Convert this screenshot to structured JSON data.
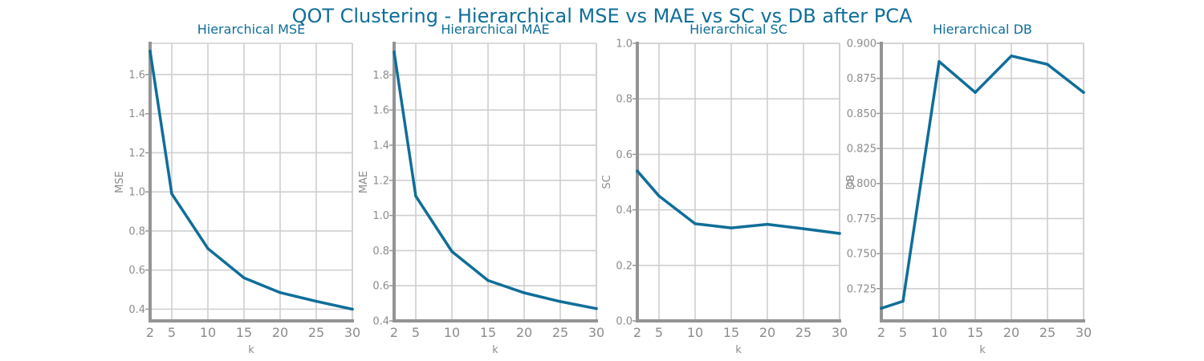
{
  "suptitle": "QOT Clustering - Hierarchical MSE vs MAE vs SC vs DB after PCA",
  "colors": {
    "line": "#0f6e99",
    "title": "#0f6e99",
    "axis": "#949494",
    "grid": "#cfcfcf",
    "text": "#8c8c8c"
  },
  "chart_data": [
    {
      "type": "line",
      "title": "Hierarchical MSE",
      "xlabel": "k",
      "ylabel": "MSE",
      "x": [
        2,
        5,
        10,
        15,
        20,
        25,
        30
      ],
      "xticks": [
        2,
        5,
        10,
        15,
        20,
        25,
        30
      ],
      "xlim": [
        2,
        30
      ],
      "series": [
        {
          "values": [
            1.72,
            0.99,
            0.71,
            0.56,
            0.485,
            0.44,
            0.4
          ]
        }
      ],
      "yticks": [
        "0.4",
        "0.6",
        "0.8",
        "1.0",
        "1.2",
        "1.4",
        "1.6"
      ],
      "ylim": [
        0.34,
        1.76
      ],
      "grid": true
    },
    {
      "type": "line",
      "title": "Hierarchical MAE",
      "xlabel": "k",
      "ylabel": "MAE",
      "x": [
        2,
        5,
        10,
        15,
        20,
        25,
        30
      ],
      "xticks": [
        2,
        5,
        10,
        15,
        20,
        25,
        30
      ],
      "xlim": [
        2,
        30
      ],
      "series": [
        {
          "values": [
            1.93,
            1.11,
            0.795,
            0.63,
            0.56,
            0.51,
            0.47
          ]
        }
      ],
      "yticks": [
        "0.4",
        "0.6",
        "0.8",
        "1.0",
        "1.2",
        "1.4",
        "1.6",
        "1.8"
      ],
      "ylim": [
        0.4,
        1.98
      ],
      "grid": true
    },
    {
      "type": "line",
      "title": "Hierarchical SC",
      "xlabel": "k",
      "ylabel": "SC",
      "x": [
        2,
        5,
        10,
        15,
        20,
        25,
        30
      ],
      "xticks": [
        2,
        5,
        10,
        15,
        20,
        25,
        30
      ],
      "xlim": [
        2,
        30
      ],
      "series": [
        {
          "values": [
            0.54,
            0.45,
            0.35,
            0.335,
            0.348,
            0.332,
            0.315
          ]
        }
      ],
      "yticks": [
        "0.0",
        "0.2",
        "0.4",
        "0.6",
        "0.8",
        "1.0"
      ],
      "ylim": [
        0.0,
        1.0
      ],
      "grid": true
    },
    {
      "type": "line",
      "title": "Hierarchical DB",
      "xlabel": "k",
      "ylabel": "DB",
      "x": [
        2,
        5,
        10,
        15,
        20,
        25,
        30
      ],
      "xticks": [
        2,
        5,
        10,
        15,
        20,
        25,
        30
      ],
      "xlim": [
        2,
        30
      ],
      "series": [
        {
          "values": [
            0.711,
            0.716,
            0.887,
            0.865,
            0.891,
            0.885,
            0.865
          ]
        }
      ],
      "yticks": [
        "0.725",
        "0.750",
        "0.775",
        "0.800",
        "0.825",
        "0.850",
        "0.875",
        "0.900"
      ],
      "ylim": [
        0.702,
        0.9
      ],
      "grid": true
    }
  ]
}
